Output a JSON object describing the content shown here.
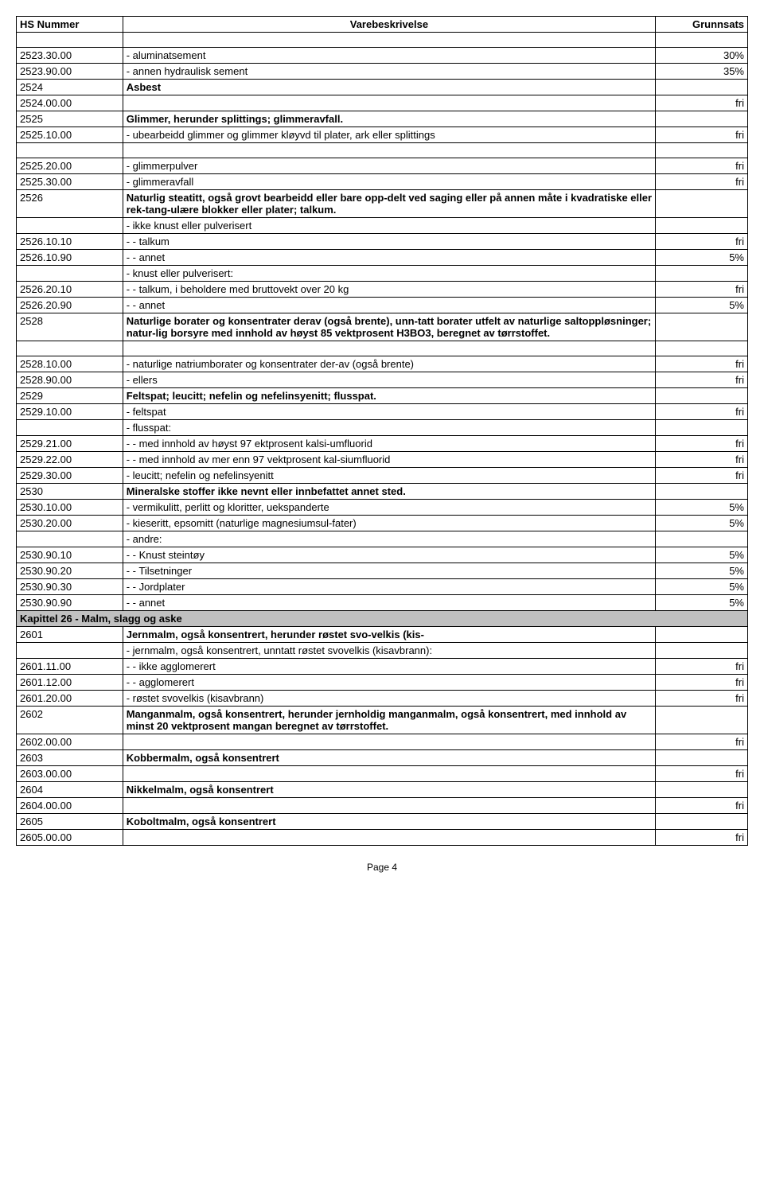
{
  "header": {
    "col1": "HS Nummer",
    "col2": "Varebeskrivelse",
    "col3": "Grunnsats"
  },
  "rows": [
    {
      "type": "spacer"
    },
    {
      "code": "2523.30.00",
      "desc": "- aluminatsement",
      "rate": "30%"
    },
    {
      "code": "2523.90.00",
      "desc": "- annen hydraulisk sement",
      "rate": "35%"
    },
    {
      "code": "2524",
      "desc": "Asbest",
      "rate": "",
      "bold": true
    },
    {
      "code": "2524.00.00",
      "desc": "",
      "rate": "fri"
    },
    {
      "code": "2525",
      "desc": "Glimmer, herunder splittings; glimmeravfall.",
      "rate": "",
      "bold": true
    },
    {
      "code": "2525.10.00",
      "desc": "- ubearbeidd glimmer og glimmer kløyvd til plater, ark eller splittings",
      "rate": "fri"
    },
    {
      "type": "spacer"
    },
    {
      "code": "2525.20.00",
      "desc": "- glimmerpulver",
      "rate": "fri"
    },
    {
      "code": "2525.30.00",
      "desc": "- glimmeravfall",
      "rate": "fri"
    },
    {
      "code": "2526",
      "desc": "Naturlig steatitt, også grovt bearbeidd eller bare opp-delt ved saging eller på annen måte i kvadratiske eller rek-tang-ulære blokker eller plater; talkum.",
      "rate": "",
      "bold": true
    },
    {
      "code": "",
      "desc": "- ikke knust eller pulverisert",
      "rate": ""
    },
    {
      "code": "2526.10.10",
      "desc": "- - talkum",
      "rate": "fri"
    },
    {
      "code": "2526.10.90",
      "desc": "- - annet",
      "rate": "5%"
    },
    {
      "code": "",
      "desc": "- knust eller pulverisert:",
      "rate": ""
    },
    {
      "code": "2526.20.10",
      "desc": "- - talkum, i beholdere med bruttovekt over 20 kg",
      "rate": "fri"
    },
    {
      "code": "2526.20.90",
      "desc": "- - annet",
      "rate": "5%"
    },
    {
      "code": "2528",
      "desc": "Naturlige borater og konsentrater derav (også brente), unn-tatt borater utfelt av naturlige saltoppløsninger; natur-lig borsyre med innhold av høyst 85 vektprosent H3BO3, beregnet av tørrstoffet.",
      "rate": "",
      "bold": true
    },
    {
      "type": "spacer"
    },
    {
      "code": "2528.10.00",
      "desc": "- naturlige natriumborater og konsentrater der-av (også brente)",
      "rate": "fri"
    },
    {
      "code": "2528.90.00",
      "desc": "- ellers",
      "rate": "fri"
    },
    {
      "code": "2529",
      "desc": "Feltspat; leucitt; nefelin og nefelinsyenitt; flusspat.",
      "rate": "",
      "bold": true
    },
    {
      "code": "2529.10.00",
      "desc": "- feltspat",
      "rate": "fri"
    },
    {
      "code": "",
      "desc": "- flusspat:",
      "rate": ""
    },
    {
      "code": "2529.21.00",
      "desc": "- - med innhold av høyst 97 ektprosent kalsi-umfluorid",
      "rate": "fri"
    },
    {
      "code": "2529.22.00",
      "desc": "- - med innhold av mer enn 97 vektprosent kal-siumfluorid",
      "rate": "fri"
    },
    {
      "code": "2529.30.00",
      "desc": "- leucitt; nefelin og nefelinsyenitt",
      "rate": "fri"
    },
    {
      "code": "2530",
      "desc": "Mineralske stoffer ikke nevnt eller innbefattet annet sted.",
      "rate": "",
      "bold": true
    },
    {
      "code": "2530.10.00",
      "desc": "- vermikulitt, perlitt og kloritter, uekspanderte",
      "rate": "5%"
    },
    {
      "code": "2530.20.00",
      "desc": "- kieseritt, epsomitt (naturlige magnesiumsul-fater)",
      "rate": "5%"
    },
    {
      "code": "",
      "desc": "- andre:",
      "rate": ""
    },
    {
      "code": "2530.90.10",
      "desc": "- - Knust steintøy",
      "rate": "5%"
    },
    {
      "code": "2530.90.20",
      "desc": "- - Tilsetninger",
      "rate": "5%"
    },
    {
      "code": "2530.90.30",
      "desc": "- - Jordplater",
      "rate": "5%"
    },
    {
      "code": "2530.90.90",
      "desc": "- - annet",
      "rate": "5%"
    },
    {
      "type": "chapter",
      "desc": "Kapittel 26 - Malm, slagg og aske"
    },
    {
      "code": "2601",
      "desc": "Jernmalm, også konsentrert, herunder røstet svo-velkis (kis-",
      "rate": "",
      "bold": true
    },
    {
      "code": "",
      "desc": "- jernmalm, også konsentrert, unntatt røstet svovelkis (kisavbrann):",
      "rate": ""
    },
    {
      "code": "2601.11.00",
      "desc": "- - ikke agglomerert",
      "rate": "fri"
    },
    {
      "code": "2601.12.00",
      "desc": "- - agglomerert",
      "rate": "fri"
    },
    {
      "code": "2601.20.00",
      "desc": "- røstet svovelkis (kisavbrann)",
      "rate": "fri"
    },
    {
      "code": "2602",
      "desc": " Manganmalm, også konsentrert, herunder jernholdig manganmalm, også konsentrert, med innhold av minst 20 vektprosent mangan beregnet av tørrstoffet.",
      "rate": "",
      "bold": true
    },
    {
      "code": "2602.00.00",
      "desc": "",
      "rate": "fri"
    },
    {
      "code": "2603",
      "desc": "Kobbermalm, også konsentrert",
      "rate": "",
      "bold": true
    },
    {
      "code": "2603.00.00",
      "desc": "",
      "rate": "fri"
    },
    {
      "code": "2604",
      "desc": "Nikkelmalm, også konsentrert",
      "rate": "",
      "bold": true
    },
    {
      "code": "2604.00.00",
      "desc": "",
      "rate": "fri"
    },
    {
      "code": "2605",
      "desc": "Koboltmalm, også konsentrert",
      "rate": "",
      "bold": true
    },
    {
      "code": "2605.00.00",
      "desc": "",
      "rate": "fri"
    }
  ],
  "footer": "Page 4"
}
